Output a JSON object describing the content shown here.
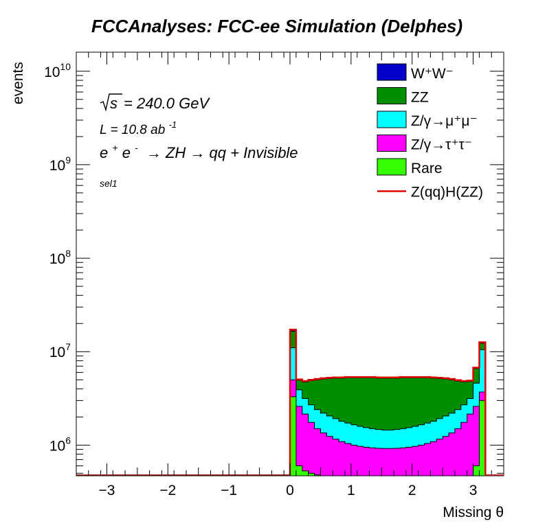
{
  "chart_data": {
    "type": "histogram-stacked",
    "title": "FCCAnalyses: FCC-ee Simulation (Delphes)",
    "xlabel": "Missing θ",
    "ylabel": "events",
    "xlim": [
      -3.5,
      3.5
    ],
    "ylim": [
      470000,
      16000000000
    ],
    "yscale": "log",
    "x_ticks": [
      -3,
      -2,
      -1,
      0,
      1,
      2,
      3
    ],
    "x_tick_labels": [
      "−3",
      "−2",
      "−1",
      "0",
      "1",
      "2",
      "3"
    ],
    "y_ticks": [
      1000000,
      10000000,
      100000000,
      1000000000,
      10000000000
    ],
    "y_tick_labels": [
      {
        "base": "10",
        "exp": "6"
      },
      {
        "base": "10",
        "exp": "7"
      },
      {
        "base": "10",
        "exp": "8"
      },
      {
        "base": "10",
        "exp": "9"
      },
      {
        "base": "10",
        "exp": "10"
      }
    ],
    "bins": {
      "start": 0.0,
      "width": 0.1,
      "count": 32
    },
    "stack_totals": {
      "Rare": [
        3300000,
        600000,
        530000,
        500000,
        480000,
        470000,
        470000,
        470000,
        470000,
        470000,
        470000,
        470000,
        470000,
        470000,
        470000,
        470000,
        470000,
        470000,
        470000,
        470000,
        470000,
        470000,
        470000,
        470000,
        470000,
        470000,
        470000,
        470000,
        470000,
        470000,
        600000,
        3000000
      ],
      "Z/γ→τ+τ-": [
        5000000,
        2600000,
        2150000,
        1750000,
        1500000,
        1350000,
        1240000,
        1160000,
        1090000,
        1040000,
        1000000,
        970000,
        950000,
        935000,
        925000,
        920000,
        920000,
        925000,
        935000,
        950000,
        970000,
        1000000,
        1040000,
        1090000,
        1160000,
        1240000,
        1350000,
        1500000,
        1750000,
        2150000,
        2600000,
        3700000
      ],
      "Z/γ→μ+μ-": [
        11000000,
        3900000,
        3150000,
        2700000,
        2400000,
        2200000,
        2050000,
        1920000,
        1800000,
        1720000,
        1650000,
        1590000,
        1540000,
        1500000,
        1470000,
        1450000,
        1450000,
        1470000,
        1500000,
        1540000,
        1590000,
        1650000,
        1720000,
        1800000,
        1920000,
        2050000,
        2200000,
        2400000,
        2700000,
        3150000,
        4600000,
        10500000
      ],
      "ZZ": [
        16500000,
        4950000,
        4750000,
        4900000,
        5000000,
        5100000,
        5150000,
        5200000,
        5200000,
        5250000,
        5250000,
        5250000,
        5250000,
        5250000,
        5200000,
        5200000,
        5200000,
        5200000,
        5250000,
        5250000,
        5250000,
        5250000,
        5250000,
        5200000,
        5150000,
        5100000,
        5000000,
        4850000,
        4750000,
        4800000,
        6600000,
        12300000
      ],
      "W+W-": [
        17000000,
        5000000,
        4800000,
        4950000,
        5050000,
        5150000,
        5200000,
        5250000,
        5250000,
        5300000,
        5300000,
        5300000,
        5300000,
        5300000,
        5250000,
        5250000,
        5250000,
        5250000,
        5300000,
        5300000,
        5300000,
        5300000,
        5300000,
        5250000,
        5200000,
        5150000,
        5050000,
        4900000,
        4800000,
        4850000,
        6700000,
        12500000
      ]
    },
    "signal_line": [
      17200000,
      5050000,
      4850000,
      5000000,
      5100000,
      5200000,
      5250000,
      5300000,
      5300000,
      5350000,
      5350000,
      5350000,
      5350000,
      5350000,
      5300000,
      5300000,
      5300000,
      5300000,
      5350000,
      5350000,
      5350000,
      5350000,
      5350000,
      5300000,
      5250000,
      5200000,
      5100000,
      4950000,
      4850000,
      4900000,
      6750000,
      12600000
    ],
    "legend": {
      "placement": "top-right",
      "entries": [
        {
          "label": "W⁺W⁻",
          "color": "#0000c8",
          "kind": "box"
        },
        {
          "label": "ZZ",
          "color": "#008f00",
          "kind": "box"
        },
        {
          "label": "Z/γ→μ⁺μ⁻",
          "color": "#00ffff",
          "kind": "box"
        },
        {
          "label": "Z/γ→τ⁺τ⁻",
          "color": "#ff00ff",
          "kind": "box"
        },
        {
          "label": "Rare",
          "color": "#33ff00",
          "kind": "box"
        },
        {
          "label": "Z(qq)H(ZZ)",
          "color": "#e00000",
          "kind": "line"
        }
      ]
    },
    "annotations": {
      "sqrt_s": "s",
      "energy": "= 240.0 GeV",
      "lumi_main": "L = 10.8 ab",
      "lumi_exp": "-1",
      "process_e1": "e",
      "process_sup1": "+",
      "process_e2": "e",
      "process_sup2": "-",
      "process_rest": "→ ZH → qq + Invisible",
      "selection": "sel1"
    },
    "grid": false
  }
}
